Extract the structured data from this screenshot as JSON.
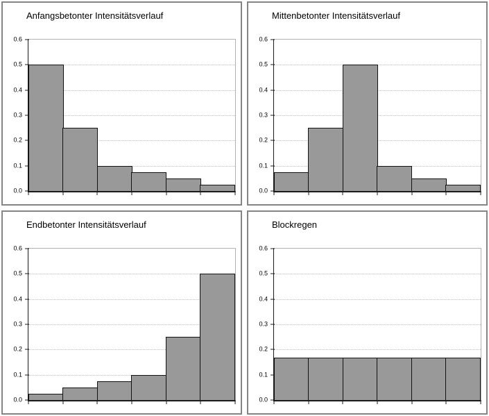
{
  "colors": {
    "bar_fill": "#999999",
    "bar_border": "#111111",
    "axis": "#1a1a1a",
    "gridline": "#bdbdbd",
    "plot_border": "#b2b2b2",
    "panel_border": "#848484",
    "background": "#ffffff"
  },
  "chart_data": [
    {
      "type": "bar",
      "title": "Anfangsbetonter Intensitätsverlauf",
      "values": [
        0.5,
        0.25,
        0.1,
        0.075,
        0.05,
        0.025
      ],
      "ylim": [
        0,
        0.6
      ],
      "yticks": [
        0,
        0.1,
        0.2,
        0.3,
        0.4,
        0.5,
        0.6
      ],
      "ytick_labels": [
        "0.0",
        "0.1",
        "0.2",
        "0.3",
        "0.4",
        "0.5",
        "0.6"
      ],
      "xlabel": "",
      "ylabel": "",
      "grid": true,
      "legend": false
    },
    {
      "type": "bar",
      "title": "Mittenbetonter Intensitätsverlauf",
      "values": [
        0.075,
        0.25,
        0.5,
        0.1,
        0.05,
        0.025
      ],
      "ylim": [
        0,
        0.6
      ],
      "yticks": [
        0,
        0.1,
        0.2,
        0.3,
        0.4,
        0.5,
        0.6
      ],
      "ytick_labels": [
        "0.0",
        "0.1",
        "0.2",
        "0.3",
        "0.4",
        "0.5",
        "0.6"
      ],
      "xlabel": "",
      "ylabel": "",
      "grid": true,
      "legend": false
    },
    {
      "type": "bar",
      "title": "Endbetonter Intensitätsverlauf",
      "values": [
        0.025,
        0.05,
        0.075,
        0.1,
        0.25,
        0.5
      ],
      "ylim": [
        0,
        0.6
      ],
      "yticks": [
        0,
        0.1,
        0.2,
        0.3,
        0.4,
        0.5,
        0.6
      ],
      "ytick_labels": [
        "0.0",
        "0.1",
        "0.2",
        "0.3",
        "0.4",
        "0.5",
        "0.6"
      ],
      "xlabel": "",
      "ylabel": "",
      "grid": true,
      "legend": false
    },
    {
      "type": "bar",
      "title": "Blockregen",
      "values": [
        0.1667,
        0.1667,
        0.1667,
        0.1667,
        0.1667,
        0.1667
      ],
      "ylim": [
        0,
        0.6
      ],
      "yticks": [
        0,
        0.1,
        0.2,
        0.3,
        0.4,
        0.5,
        0.6
      ],
      "ytick_labels": [
        "0.0",
        "0.1",
        "0.2",
        "0.3",
        "0.4",
        "0.5",
        "0.6"
      ],
      "xlabel": "",
      "ylabel": "",
      "grid": true,
      "legend": false
    }
  ]
}
